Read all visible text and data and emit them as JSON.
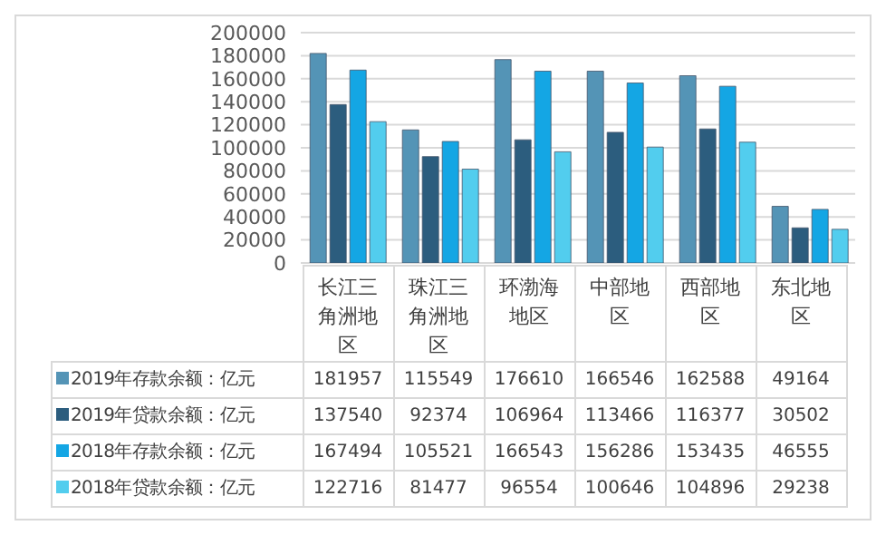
{
  "chart_data": {
    "type": "bar",
    "categories": [
      "长江三角洲地区",
      "珠江三角洲地区",
      "环渤海地区",
      "中部地区",
      "西部地区",
      "东北地区"
    ],
    "series": [
      {
        "name": "2019年存款余额：亿元",
        "color": "#5494b6",
        "values": [
          181957,
          115549,
          176610,
          166546,
          162588,
          49164
        ]
      },
      {
        "name": "2019年贷款余额：亿元",
        "color": "#2c5d7e",
        "values": [
          137540,
          92374,
          106964,
          113466,
          116377,
          30502
        ]
      },
      {
        "name": "2018年存款余额：亿元",
        "color": "#14a6e4",
        "values": [
          167494,
          105521,
          166543,
          156286,
          153435,
          46555
        ]
      },
      {
        "name": "2018年贷款余额：亿元",
        "color": "#52cdee",
        "values": [
          122716,
          81477,
          96554,
          100646,
          104896,
          29238
        ]
      }
    ],
    "ylim": [
      0,
      200000
    ],
    "yticks": [
      0,
      20000,
      40000,
      60000,
      80000,
      100000,
      120000,
      140000,
      160000,
      180000,
      200000
    ],
    "grid": "y",
    "legend": "bottom",
    "data_labels": true
  }
}
